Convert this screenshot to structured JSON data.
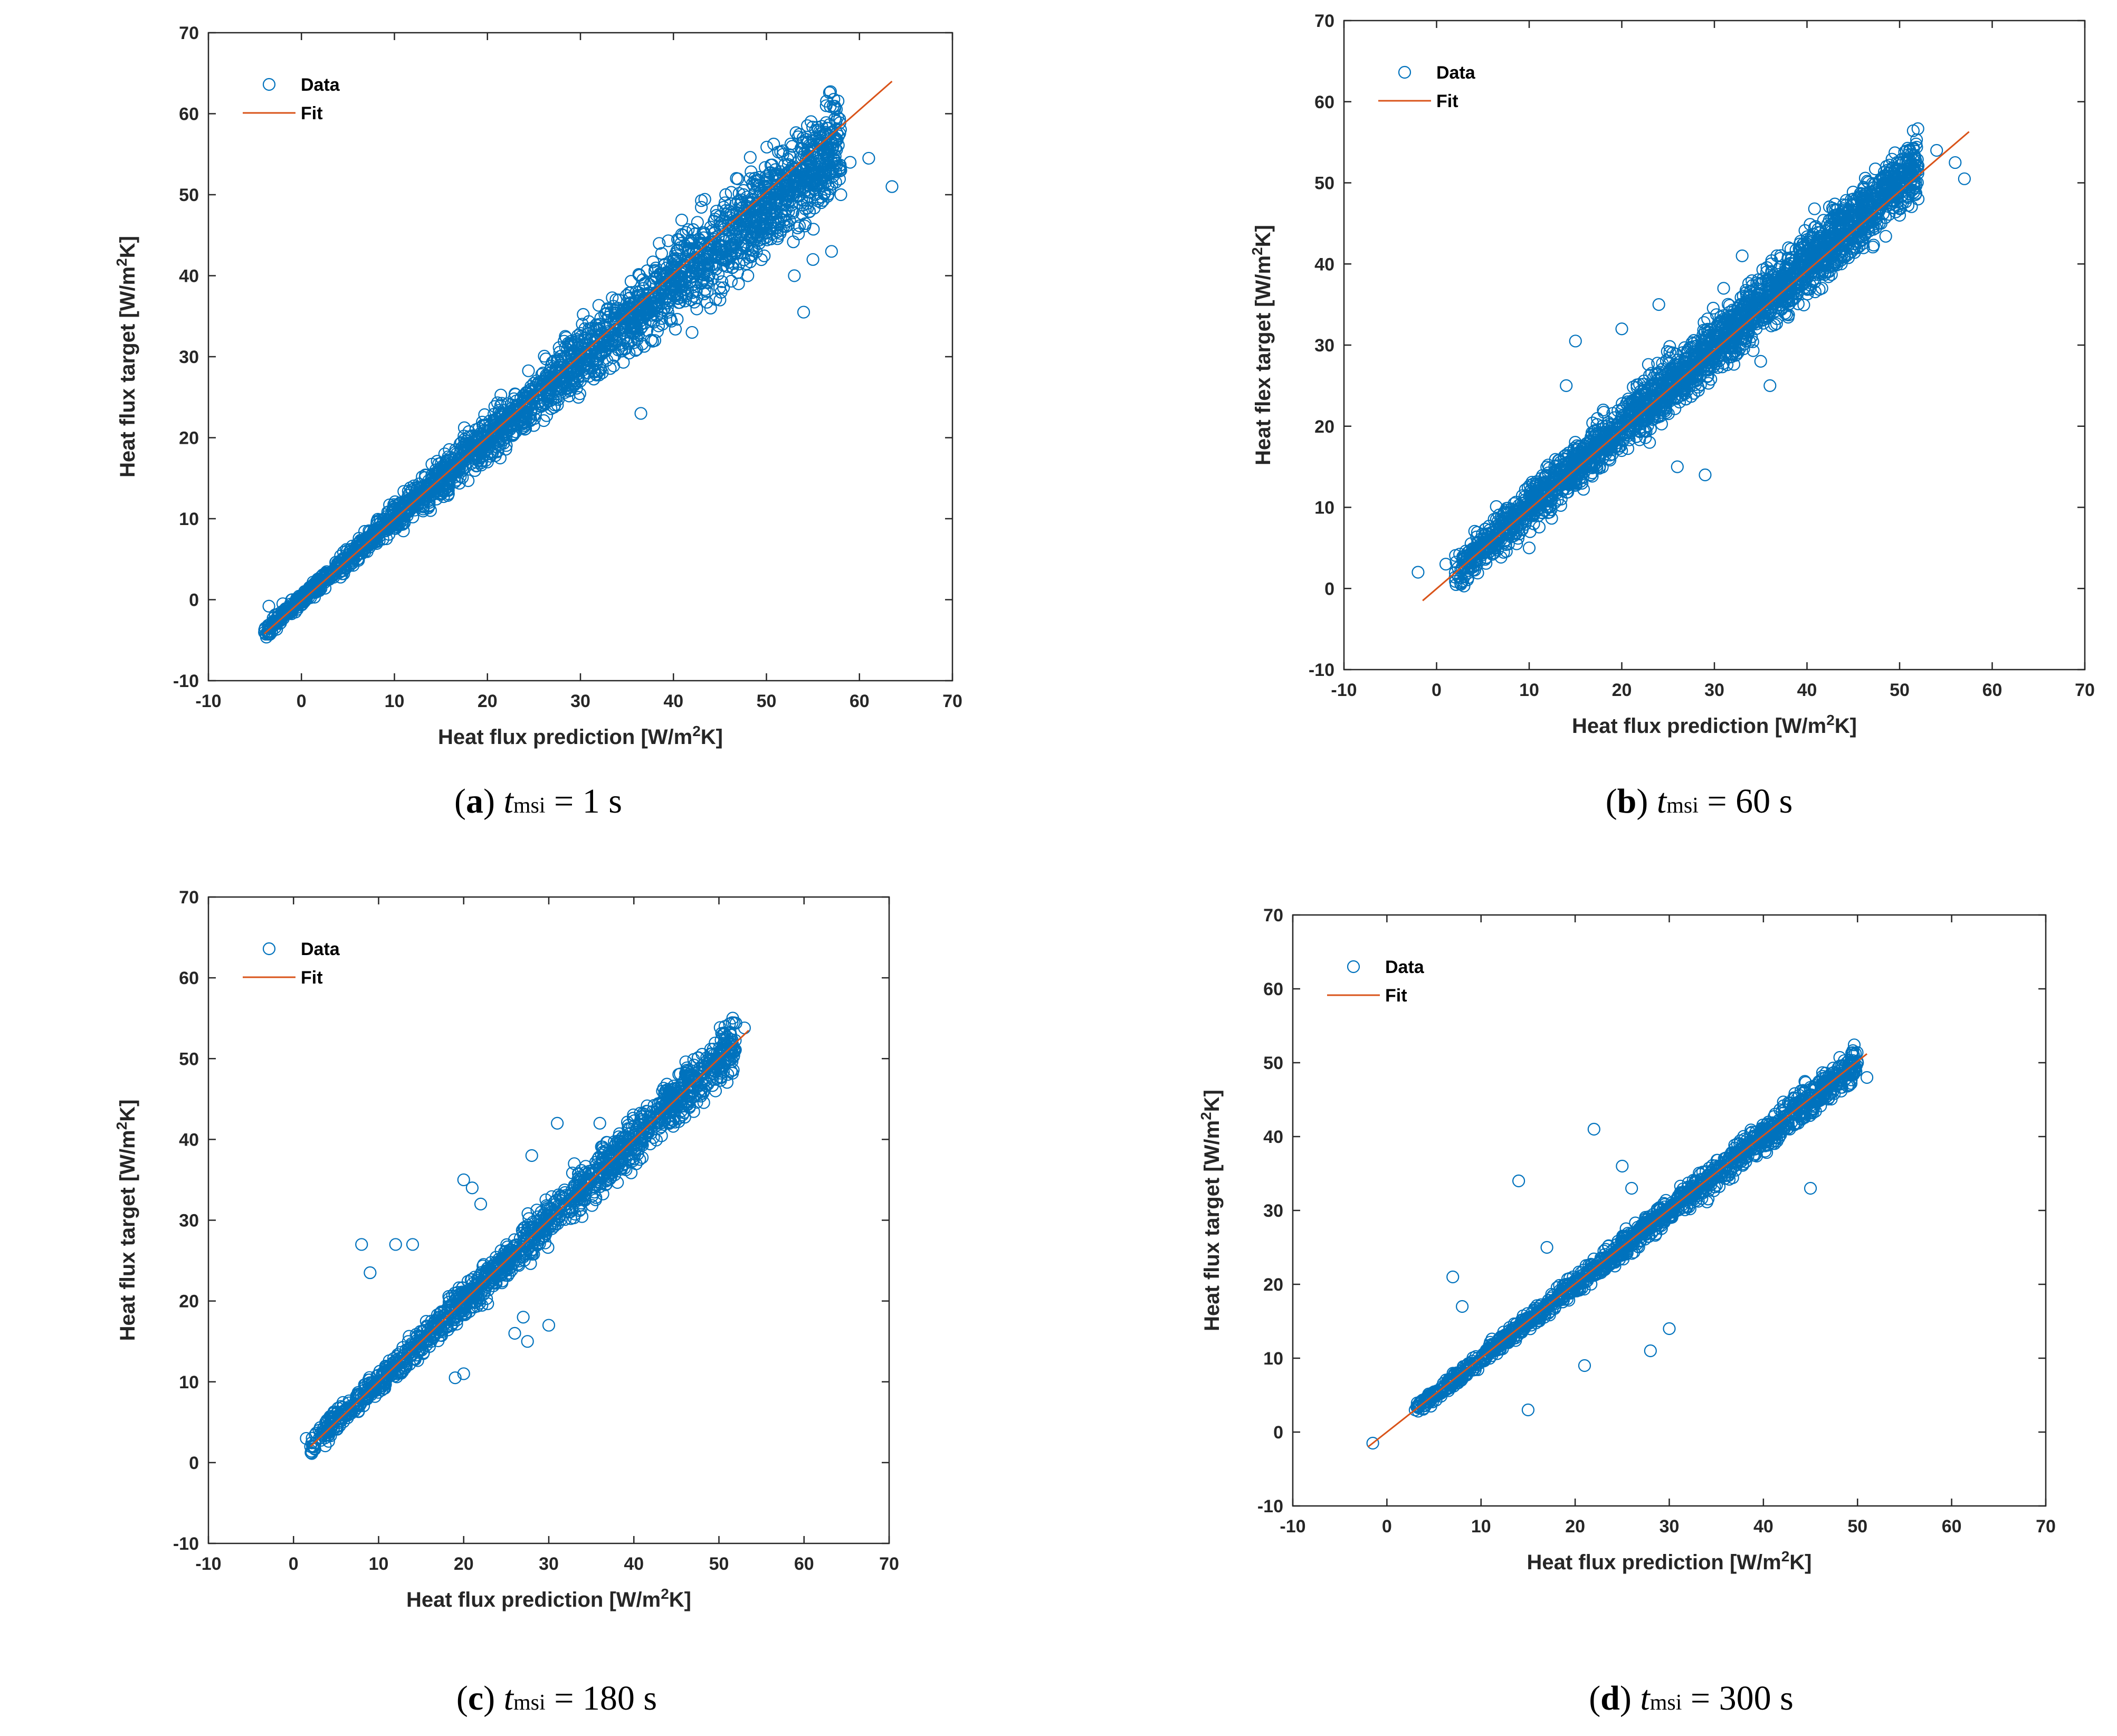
{
  "figure": {
    "captions": [
      {
        "letter": "a",
        "var": "t",
        "sub": "msi",
        "eq": " = 1 s"
      },
      {
        "letter": "b",
        "var": "t",
        "sub": "msi",
        "eq": " = 60 s"
      },
      {
        "letter": "c",
        "var": "t",
        "sub": "msi",
        "eq": " = 180 s"
      },
      {
        "letter": "d",
        "var": "t",
        "sub": "msi",
        "eq": " = 300 s"
      }
    ]
  },
  "colors": {
    "data": "#0072BD",
    "fit": "#D95319",
    "axis": "#262626"
  },
  "chart_data": [
    {
      "type": "scatter",
      "title": "",
      "xlabel": "Heat flux prediction",
      "xunit": "[W/m2K]",
      "ylabel": "Heat flux target",
      "yunit": "[W/m2K]",
      "xlim": [
        -10,
        70
      ],
      "ylim": [
        -10,
        70
      ],
      "xticks": [
        -10,
        0,
        10,
        20,
        30,
        40,
        50,
        60,
        70
      ],
      "yticks": [
        -10,
        0,
        10,
        20,
        30,
        40,
        50,
        60,
        70
      ],
      "legend": [
        "Data",
        "Fit"
      ],
      "legend_position": "top-left",
      "series": [
        {
          "name": "Data",
          "marker": "circle",
          "x": [
            -3.5,
            -2,
            -1,
            0,
            1,
            2,
            3,
            4,
            5,
            6,
            8,
            10,
            12,
            14,
            16,
            18,
            20,
            22,
            24,
            26,
            28,
            30,
            32,
            34,
            36,
            38,
            40,
            42,
            44,
            46,
            48,
            50,
            52,
            54,
            56,
            58,
            59,
            61,
            63.5,
            57,
            53,
            48,
            45,
            44,
            42,
            38,
            35,
            30,
            26,
            22,
            20,
            15,
            36.5,
            54,
            55,
            58,
            50,
            47
          ],
          "y": [
            -0.8,
            -0.5,
            0,
            0.5,
            1.2,
            2,
            3,
            4,
            5,
            6,
            8,
            10,
            12,
            14,
            16.5,
            18.5,
            20.5,
            22.5,
            25,
            27,
            29.5,
            31.5,
            34,
            36,
            38,
            40.5,
            42,
            44,
            46,
            47.5,
            49,
            50,
            51,
            52.5,
            52,
            53,
            54,
            54.5,
            51,
            43,
            40,
            40,
            37,
            36,
            33,
            32,
            34,
            27,
            24,
            20,
            17,
            13,
            23,
            35.5,
            42,
            50,
            46,
            39
          ]
        },
        {
          "name": "Fit",
          "type": "line",
          "x": [
            -4,
            63.5
          ],
          "y": [
            -4.2,
            64
          ]
        }
      ]
    },
    {
      "type": "scatter",
      "title": "",
      "xlabel": "Heat flux prediction",
      "xunit": "[W/m2K]",
      "ylabel": "Heat flex target",
      "yunit": "[W/m2K]",
      "xlim": [
        -10,
        70
      ],
      "ylim": [
        -10,
        70
      ],
      "xticks": [
        -10,
        0,
        10,
        20,
        30,
        40,
        50,
        60,
        70
      ],
      "yticks": [
        -10,
        0,
        10,
        20,
        30,
        40,
        50,
        60,
        70
      ],
      "legend": [
        "Data",
        "Fit"
      ],
      "legend_position": "top-left",
      "series": [
        {
          "name": "Data",
          "marker": "circle",
          "x": [
            -2,
            1,
            3,
            4,
            5,
            6,
            7,
            8,
            10,
            12,
            13,
            14,
            15,
            16,
            18,
            20,
            22,
            24,
            26,
            28,
            30,
            32,
            34,
            36,
            38,
            40,
            42,
            44,
            46,
            48,
            50,
            52,
            54,
            57,
            56,
            15,
            14,
            20,
            24,
            31,
            33,
            38,
            26,
            23,
            18,
            10,
            29,
            45,
            50,
            40,
            35,
            36
          ],
          "y": [
            2,
            3,
            2.5,
            4,
            5,
            6,
            6.5,
            8,
            9,
            10,
            14,
            13,
            16,
            15,
            18,
            19,
            21,
            23,
            25,
            26,
            28,
            30,
            31,
            34,
            35,
            37,
            39,
            41,
            43,
            45,
            46,
            48,
            54,
            50.5,
            52.5,
            30.5,
            25,
            32,
            35,
            37,
            41,
            42,
            15,
            18,
            22,
            5,
            14,
            48,
            50,
            43,
            28,
            25
          ]
        },
        {
          "name": "Fit",
          "type": "line",
          "x": [
            -1.5,
            57.5
          ],
          "y": [
            -1.5,
            56.3
          ]
        }
      ]
    },
    {
      "type": "scatter",
      "title": "",
      "xlabel": "Heat flux prediction",
      "xunit": "[W/m2K]",
      "ylabel": "Heat flux target",
      "yunit": "[W/m2K]",
      "xlim": [
        -10,
        70
      ],
      "ylim": [
        -10,
        70
      ],
      "xticks": [
        -10,
        0,
        10,
        20,
        30,
        40,
        50,
        60,
        70
      ],
      "yticks": [
        -10,
        0,
        10,
        20,
        30,
        40,
        50,
        60,
        70
      ],
      "legend": [
        "Data",
        "Fit"
      ],
      "legend_position": "top-left",
      "series": [
        {
          "name": "Data",
          "marker": "circle",
          "x": [
            1.5,
            2,
            3,
            4,
            5,
            6,
            7,
            8,
            9,
            10,
            11,
            12,
            13,
            14,
            15,
            16,
            17,
            18,
            19,
            20,
            21,
            22,
            23,
            24,
            25,
            26,
            27,
            28,
            29,
            30,
            31,
            32,
            33,
            34,
            35,
            36,
            37,
            38,
            40,
            42,
            44,
            45,
            47,
            50,
            51,
            53,
            8,
            9,
            12,
            14,
            20,
            21,
            22,
            28,
            31,
            33,
            26,
            27,
            30,
            36,
            27.5,
            19,
            20
          ],
          "y": [
            3,
            2,
            4,
            5,
            6,
            6,
            7,
            8,
            9,
            10,
            11,
            12,
            13,
            14,
            15,
            16,
            17,
            18,
            19,
            20,
            21,
            22,
            23,
            24,
            25,
            26,
            27,
            28,
            29,
            30,
            31,
            32,
            33,
            34,
            35,
            36,
            37,
            38,
            40,
            42,
            44,
            45,
            46,
            49,
            50,
            53.8,
            27,
            23.5,
            27,
            27,
            35,
            34,
            32,
            38,
            42,
            37,
            16,
            18,
            17,
            42,
            15,
            10.5,
            11
          ]
        },
        {
          "name": "Fit",
          "type": "line",
          "x": [
            2,
            53.5
          ],
          "y": [
            2,
            53.5
          ]
        }
      ]
    },
    {
      "type": "scatter",
      "title": "",
      "xlabel": "Heat flux prediction",
      "xunit": "[W/m2K]",
      "ylabel": "Heat flux target",
      "yunit": "[W/m2K]",
      "xlim": [
        -10,
        70
      ],
      "ylim": [
        -10,
        70
      ],
      "xticks": [
        -10,
        0,
        10,
        20,
        30,
        40,
        50,
        60,
        70
      ],
      "yticks": [
        -10,
        0,
        10,
        20,
        30,
        40,
        50,
        60,
        70
      ],
      "legend": [
        "Data",
        "Fit"
      ],
      "legend_position": "top-left",
      "series": [
        {
          "name": "Data",
          "marker": "circle",
          "x": [
            -1.5,
            3,
            4,
            5,
            6,
            7,
            8,
            9,
            10,
            11,
            12,
            13,
            14,
            15,
            16,
            17,
            18,
            19,
            20,
            21,
            22,
            23,
            24,
            25,
            26,
            27,
            28,
            29,
            30,
            31,
            32,
            33,
            34,
            35,
            36,
            37,
            38,
            39,
            40,
            42,
            44,
            47,
            48,
            50,
            51,
            7,
            8,
            14,
            15,
            22,
            25,
            28,
            21,
            26,
            17,
            30,
            45,
            36
          ],
          "y": [
            -1.5,
            3,
            4,
            5,
            6,
            7,
            8,
            9,
            10,
            11,
            12,
            13,
            14,
            15,
            16,
            17,
            18,
            19,
            20,
            21,
            22,
            23,
            24,
            25,
            26,
            27,
            28,
            29,
            30,
            31,
            32,
            33,
            34,
            35,
            36,
            37,
            38,
            39,
            40,
            42,
            44,
            47,
            48,
            50,
            48,
            21,
            17,
            34,
            3,
            41,
            36,
            11,
            9,
            33,
            25,
            14,
            33,
            36
          ]
        },
        {
          "name": "Fit",
          "type": "line",
          "x": [
            -2,
            51
          ],
          "y": [
            -2,
            51.2
          ]
        }
      ]
    }
  ]
}
